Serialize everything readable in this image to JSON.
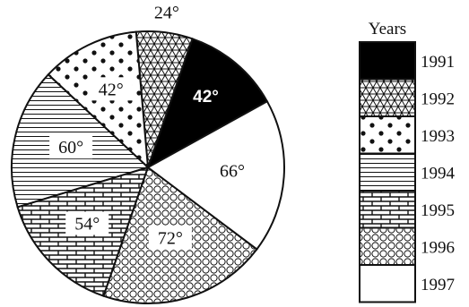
{
  "chart_data": {
    "type": "pie",
    "legend_title": "Years",
    "legend_position": "right",
    "unit": "°",
    "slices": [
      {
        "year": "1991",
        "value": 42,
        "pattern": "solid-black",
        "label": "42°"
      },
      {
        "year": "1992",
        "value": 24,
        "pattern": "triangular-mesh",
        "label": "24°"
      },
      {
        "year": "1993",
        "value": 42,
        "pattern": "dots",
        "label": "42°"
      },
      {
        "year": "1994",
        "value": 60,
        "pattern": "horizontal-lines",
        "label": "60°"
      },
      {
        "year": "1995",
        "value": 54,
        "pattern": "brick",
        "label": "54°"
      },
      {
        "year": "1996",
        "value": 72,
        "pattern": "circles",
        "label": "72°"
      },
      {
        "year": "1997",
        "value": 66,
        "pattern": "blank",
        "label": "66°"
      }
    ],
    "start_angle_deg": 29,
    "direction": "counterclockwise",
    "colors": {
      "ink": "#111111",
      "background": "#ffffff"
    }
  }
}
